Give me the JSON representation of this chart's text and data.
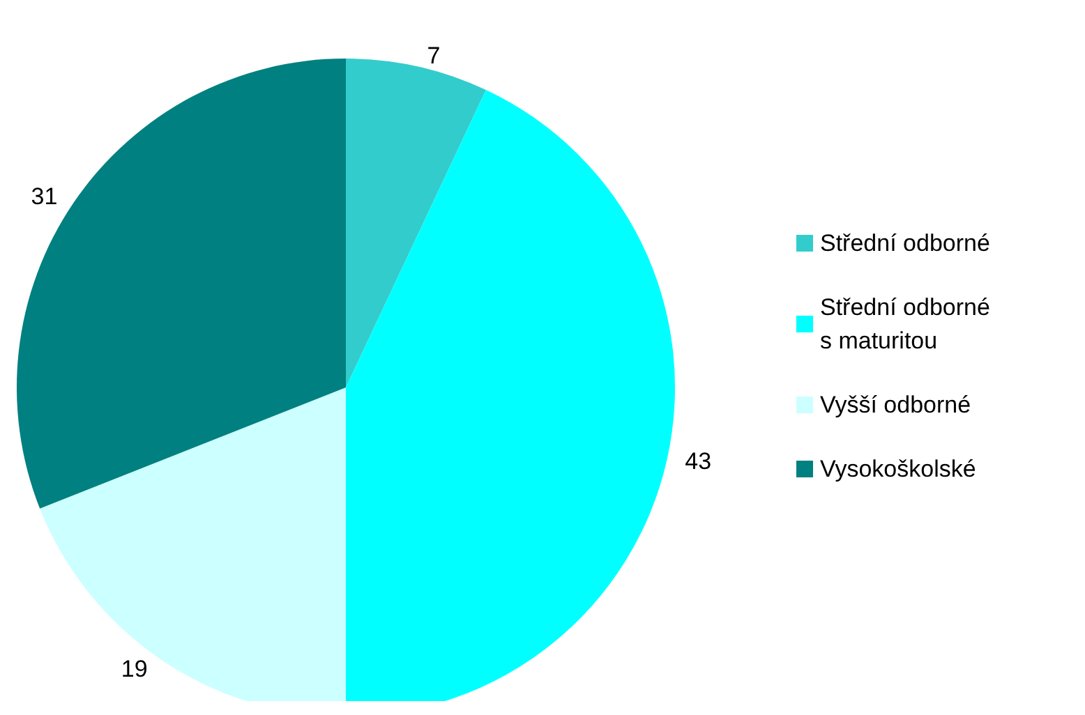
{
  "chart_data": {
    "type": "pie",
    "categories": [
      "Střední odborné",
      "Střední odborné s maturitou",
      "Vyšší odborné",
      "Vysokoškolské"
    ],
    "values": [
      7,
      43,
      19,
      31
    ],
    "colors": [
      "#33cccc",
      "#00ffff",
      "#ccffff",
      "#008080"
    ],
    "data_labels": true,
    "legend": "right"
  }
}
